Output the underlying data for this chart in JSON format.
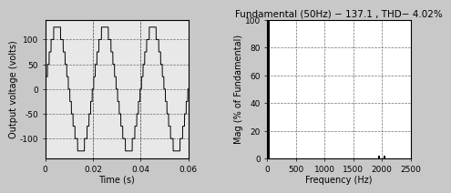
{
  "left_xlabel": "Time (s)",
  "left_ylabel": "Output voltage (volts)",
  "left_xlim": [
    0,
    0.06
  ],
  "left_ylim": [
    -140,
    140
  ],
  "left_yticks": [
    -100,
    -50,
    0,
    50,
    100
  ],
  "left_xticks": [
    0,
    0.02,
    0.04,
    0.06
  ],
  "left_xticklabels": [
    "0",
    "0.02",
    "0.04",
    "0.06"
  ],
  "left_bg": "#e8e8e8",
  "right_title": "Fundamental (50Hz) − 137.1 , THD− 4.02%",
  "right_xlabel": "Frequency (Hz)",
  "right_ylabel": "Mag (% of Fundamental)",
  "right_xlim": [
    0,
    2500
  ],
  "right_ylim": [
    0,
    100
  ],
  "right_yticks": [
    0,
    20,
    40,
    60,
    80,
    100
  ],
  "right_xticks": [
    0,
    500,
    1000,
    1500,
    2000,
    2500
  ],
  "right_bg": "#ffffff",
  "figure_bg": "#c8c8c8",
  "wave_amplitude": 125,
  "wave_frequency": 50,
  "wave_levels": 5,
  "line_color": "#000000",
  "grid_color": "#606060",
  "title_fontsize": 7.5,
  "label_fontsize": 7,
  "tick_fontsize": 6.5,
  "harmonic_freqs": [
    1950,
    2050
  ],
  "harmonic_amps": [
    2.2,
    2.2
  ]
}
